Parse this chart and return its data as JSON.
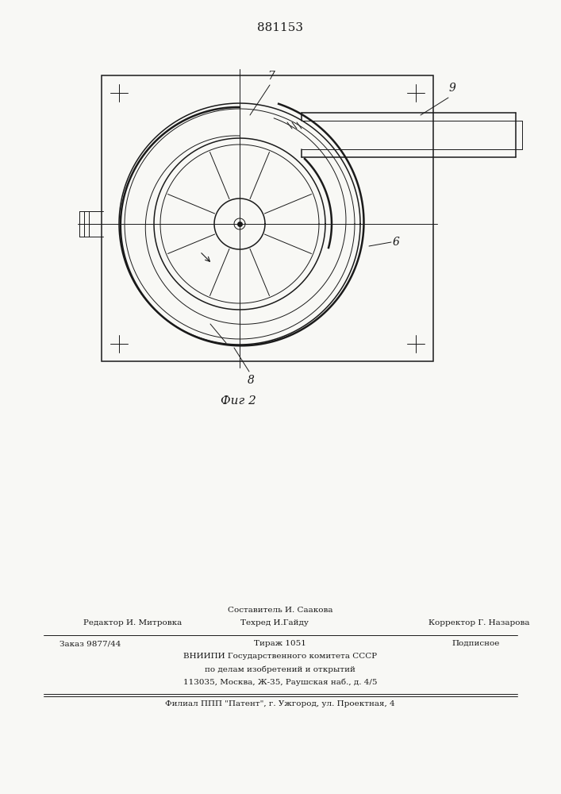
{
  "patent_number": "881153",
  "fig_label": "Фиг 2",
  "label_7": "7",
  "label_9": "9",
  "label_6": "6",
  "label_8": "8",
  "footer_line1_left": "Редактор И. Митровка",
  "footer_line1_center_top": "Составитель И. Саакова",
  "footer_line1_center_bot": "Техред И.Гайду",
  "footer_line1_right": "Корректор Г. Назарова",
  "footer_line2_left": "Заказ 9877/44",
  "footer_line2_center": "Тираж 1051",
  "footer_line2_right": "Подписное",
  "footer_line3": "ВНИИПИ Государственного комитета СССР",
  "footer_line4": "по делам изобретений и открытий",
  "footer_line5": "113035, Москва, Ж-35, Раушская наб., д. 4/5",
  "footer_line6": "Филиал ППП \"Патент\", г. Ужгород, ул. Проектная, 4",
  "bg_color": "#f8f8f5",
  "line_color": "#1a1a1a",
  "fig_width": 7.07,
  "fig_height": 10.0
}
